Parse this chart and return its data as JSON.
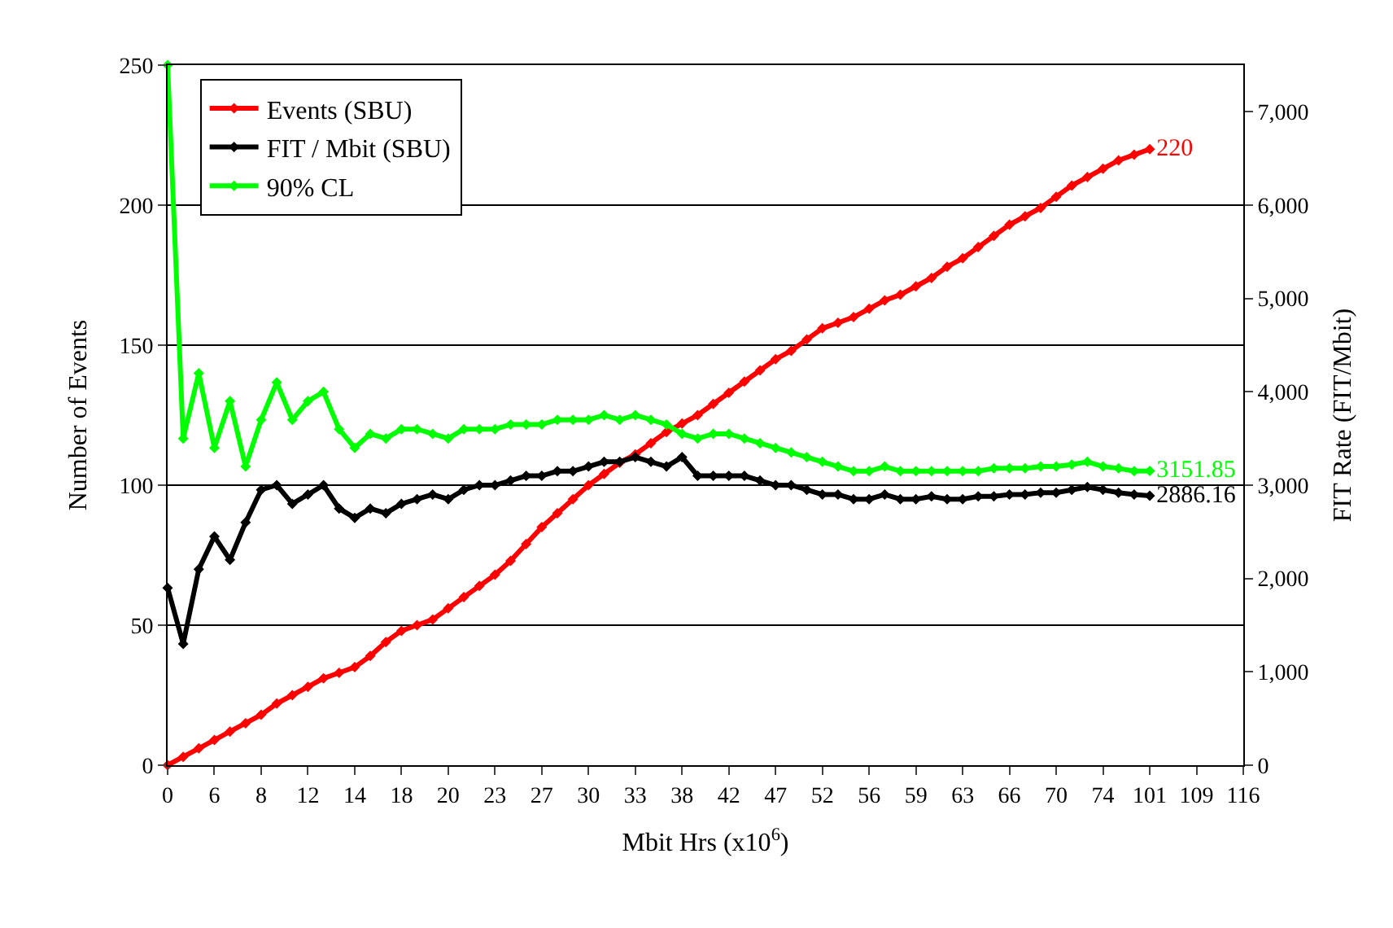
{
  "chart_data": {
    "type": "line",
    "xlabel": "Mbit Hrs (x10$^{6}$)",
    "ylabel": "Number of Events",
    "y2label": "FIT Rate (FIT/Mbit)",
    "categories": [
      "0",
      null,
      null,
      "6",
      null,
      null,
      "8",
      null,
      null,
      "12",
      null,
      null,
      "14",
      null,
      null,
      "18",
      null,
      null,
      "20",
      null,
      null,
      "23",
      null,
      null,
      "27",
      null,
      null,
      "30",
      null,
      null,
      "33",
      null,
      null,
      "38",
      null,
      null,
      "42",
      null,
      null,
      "47",
      null,
      null,
      "52",
      null,
      null,
      "56",
      null,
      null,
      "59",
      null,
      null,
      "63",
      null,
      null,
      "66",
      null,
      null,
      "70",
      null,
      null,
      "74",
      null,
      null,
      "101",
      null,
      null,
      "109",
      null,
      null,
      "116"
    ],
    "series": [
      {
        "name": "Events (SBU)",
        "color": "#ff0000",
        "values": [
          0,
          3,
          6,
          9,
          12,
          15,
          18,
          22,
          25,
          28,
          31,
          33,
          35,
          39,
          44,
          48,
          50,
          52,
          56,
          60,
          64,
          68,
          73,
          79,
          85,
          90,
          95,
          100,
          104,
          108,
          111,
          115,
          119,
          122,
          125,
          129,
          133,
          137,
          141,
          145,
          148,
          152,
          156,
          158,
          160,
          163,
          166,
          168,
          171,
          174,
          178,
          181,
          185,
          189,
          193,
          196,
          199,
          203,
          207,
          210,
          213,
          216,
          218,
          220,
          null,
          null,
          null,
          null,
          null,
          null
        ],
        "value_labels": [
          null,
          null,
          null,
          null,
          null,
          null,
          null,
          null,
          null,
          null,
          null,
          null,
          null,
          null,
          null,
          null,
          null,
          null,
          null,
          null,
          null,
          null,
          null,
          null,
          null,
          null,
          null,
          null,
          null,
          null,
          null,
          null,
          null,
          null,
          null,
          null,
          null,
          null,
          null,
          null,
          null,
          null,
          null,
          null,
          null,
          null,
          null,
          null,
          null,
          null,
          null,
          null,
          null,
          null,
          null,
          null,
          null,
          null,
          null,
          null,
          null,
          null,
          null,
          "220",
          null,
          null,
          null,
          null,
          null,
          null
        ]
      },
      {
        "name": "FIT / Mbit (SBU)",
        "color": "#000000",
        "axis": "y2",
        "values": [
          1900,
          1300,
          2100,
          2450,
          2200,
          2600,
          2950,
          3000,
          2800,
          2900,
          3000,
          2750,
          2650,
          2750,
          2700,
          2800,
          2850,
          2900,
          2850,
          2950,
          3000,
          3000,
          3050,
          3100,
          3100,
          3150,
          3150,
          3200,
          3250,
          3250,
          3300,
          3250,
          3200,
          3300,
          3100,
          3100,
          3100,
          3100,
          3050,
          3000,
          3000,
          2950,
          2900,
          2900,
          2850,
          2850,
          2900,
          2850,
          2850,
          2880,
          2850,
          2850,
          2880,
          2880,
          2900,
          2900,
          2920,
          2920,
          2950,
          2980,
          2950,
          2920,
          2900,
          2886.16,
          null,
          null,
          null,
          null,
          null,
          null
        ],
        "value_labels": [
          null,
          null,
          null,
          null,
          null,
          null,
          null,
          null,
          null,
          null,
          null,
          null,
          null,
          null,
          null,
          null,
          null,
          null,
          null,
          null,
          null,
          null,
          null,
          null,
          null,
          null,
          null,
          null,
          null,
          null,
          null,
          null,
          null,
          null,
          null,
          null,
          null,
          null,
          null,
          null,
          null,
          null,
          null,
          null,
          null,
          null,
          null,
          null,
          null,
          null,
          null,
          null,
          null,
          null,
          null,
          null,
          null,
          null,
          null,
          null,
          null,
          null,
          null,
          "2886.16",
          null,
          null,
          null,
          null,
          null,
          null
        ]
      },
      {
        "name": "90% CL",
        "color": "#00ff00",
        "axis": "y2",
        "values": [
          7500,
          3500,
          4200,
          3400,
          3900,
          3200,
          3700,
          4100,
          3700,
          3900,
          4000,
          3600,
          3400,
          3550,
          3500,
          3600,
          3600,
          3550,
          3500,
          3600,
          3600,
          3600,
          3650,
          3650,
          3650,
          3700,
          3700,
          3700,
          3750,
          3700,
          3750,
          3700,
          3650,
          3550,
          3500,
          3550,
          3550,
          3500,
          3450,
          3400,
          3350,
          3300,
          3250,
          3200,
          3150,
          3150,
          3200,
          3150,
          3150,
          3150,
          3150,
          3150,
          3150,
          3180,
          3180,
          3180,
          3200,
          3200,
          3220,
          3250,
          3200,
          3180,
          3150,
          3151.85,
          null,
          null,
          null,
          null,
          null,
          null
        ],
        "value_labels": [
          null,
          null,
          null,
          null,
          null,
          null,
          null,
          null,
          null,
          null,
          null,
          null,
          null,
          null,
          null,
          null,
          null,
          null,
          null,
          null,
          null,
          null,
          null,
          null,
          null,
          null,
          null,
          null,
          null,
          null,
          null,
          null,
          null,
          null,
          null,
          null,
          null,
          null,
          null,
          null,
          null,
          null,
          null,
          null,
          null,
          null,
          null,
          null,
          null,
          null,
          null,
          null,
          null,
          null,
          null,
          null,
          null,
          null,
          null,
          null,
          null,
          null,
          null,
          "3151.85",
          null,
          null,
          null,
          null,
          null,
          null
        ]
      }
    ],
    "ylim": [
      0,
      250
    ],
    "yticks": [
      0,
      50,
      100,
      150,
      200,
      250
    ],
    "y2lim": [
      0,
      7500
    ],
    "y2ticks": [
      0,
      {
        "value": 1000,
        "label": "1,000"
      },
      {
        "value": 2000,
        "label": "2,000"
      },
      {
        "value": 3000,
        "label": "3,000"
      },
      {
        "value": 4000,
        "label": "4,000"
      },
      {
        "value": 5000,
        "label": "5,000"
      },
      {
        "value": 6000,
        "label": "6,000"
      },
      {
        "value": 7000,
        "label": "7,000"
      }
    ],
    "grid": "y",
    "legend": "top left",
    "marker": "diamond",
    "line_style": "solid"
  }
}
